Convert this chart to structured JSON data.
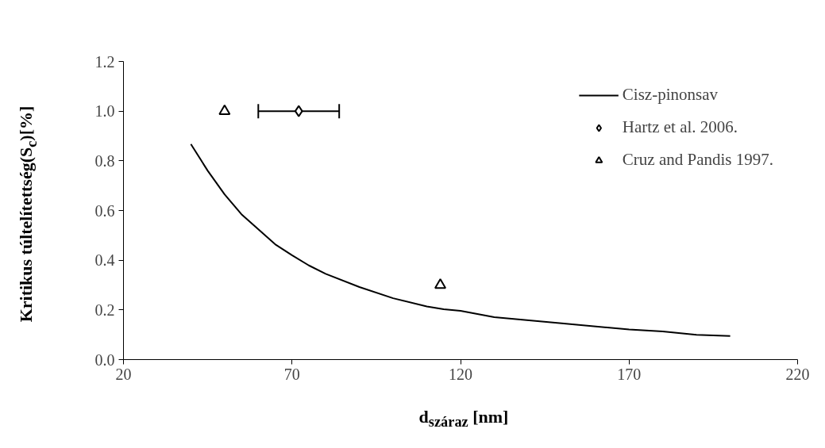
{
  "chart_data": {
    "type": "line",
    "xlabel": "d$_{száraz}$ [nm]",
    "ylabel": "Kritikus túltelítettség(S$_{c}$)[%]",
    "xlim": [
      20,
      220
    ],
    "xticks": [
      20,
      70,
      120,
      170,
      220
    ],
    "ylim": [
      0,
      1.2
    ],
    "yticks": [
      {
        "value": 0,
        "label": "0.0"
      },
      {
        "value": 0.2,
        "label": "0.2"
      },
      {
        "value": 0.4,
        "label": "0.4"
      },
      {
        "value": 0.6,
        "label": "0.6"
      },
      {
        "value": 0.8,
        "label": "0.8"
      },
      {
        "value": 1.0,
        "label": "1.0"
      },
      {
        "value": 1.2,
        "label": "1.2"
      }
    ],
    "grid": false,
    "legend": "top right",
    "series": [
      {
        "name": "Cisz-pinonsav",
        "color": "#000000",
        "marker": "none",
        "line_style": "solid",
        "x": [
          40,
          45,
          50,
          55,
          65,
          70,
          75,
          80,
          90,
          100,
          110,
          115,
          120,
          130,
          150,
          170,
          180,
          190,
          200
        ],
        "values": [
          0.867,
          0.76,
          0.665,
          0.585,
          0.464,
          0.42,
          0.379,
          0.345,
          0.292,
          0.247,
          0.214,
          0.203,
          0.196,
          0.171,
          0.146,
          0.121,
          0.113,
          0.1,
          0.095
        ]
      },
      {
        "name": "Hartz et al. 2006.",
        "type": "scatter",
        "color": "#000000",
        "marker": "diamond",
        "x": [
          72
        ],
        "values": [
          1.0
        ],
        "xerrors": [
          [
            60,
            84
          ]
        ]
      },
      {
        "name": "Cruz and Pandis 1997.",
        "type": "scatter",
        "color": "#000000",
        "marker": "triangle",
        "x": [
          50,
          114
        ],
        "values": [
          1.0,
          0.3
        ]
      }
    ]
  }
}
